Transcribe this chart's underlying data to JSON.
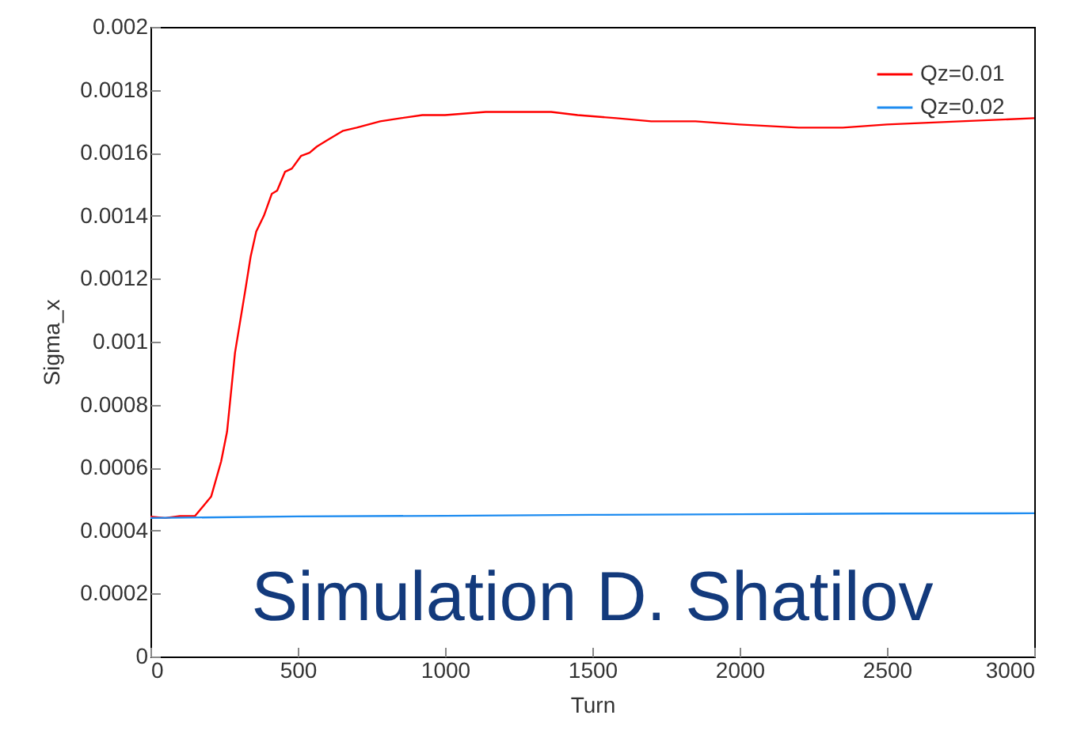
{
  "chart_data": {
    "type": "line",
    "xlabel": "Turn",
    "ylabel": "Sigma_x",
    "xlim": [
      0,
      3000
    ],
    "xticks": [
      0,
      500,
      1000,
      1500,
      2000,
      2500,
      3000
    ],
    "ylim": [
      0,
      0.002
    ],
    "yticks": [
      0,
      0.0002,
      0.0004,
      0.0006,
      0.0008,
      0.001,
      0.0012,
      0.0014,
      0.0016,
      0.0018,
      0.002
    ],
    "grid": false,
    "legend": "top right",
    "marker": "none",
    "line_style": "solid",
    "annotations": [
      "Simulation D. Shatilov"
    ],
    "series": [
      {
        "name": "Qz=0.01",
        "color": "#ff0000",
        "x": [
          0,
          50,
          100,
          152,
          206,
          240,
          260,
          287,
          323,
          340,
          359,
          385,
          412,
          430,
          457,
          480,
          511,
          540,
          565,
          600,
          654,
          700,
          780,
          850,
          923,
          1000,
          1138,
          1250,
          1360,
          1450,
          1581,
          1700,
          1850,
          2000,
          2200,
          2350,
          2500,
          2750,
          3000
        ],
        "values": [
          0.000444,
          0.00044,
          0.000446,
          0.000447,
          0.000508,
          0.00062,
          0.000714,
          0.000965,
          0.00117,
          0.00127,
          0.00135,
          0.0014,
          0.00147,
          0.00148,
          0.00154,
          0.00155,
          0.00159,
          0.0016,
          0.00162,
          0.00164,
          0.00167,
          0.00168,
          0.0017,
          0.00171,
          0.00172,
          0.00172,
          0.00173,
          0.00173,
          0.00173,
          0.00172,
          0.00171,
          0.0017,
          0.0017,
          0.00169,
          0.00168,
          0.00168,
          0.00169,
          0.0017,
          0.00171
        ]
      },
      {
        "name": "Qz=0.02",
        "color": "#1e8cf0",
        "x": [
          0,
          500,
          1000,
          1500,
          2000,
          2500,
          3000
        ],
        "values": [
          0.00044,
          0.000445,
          0.000447,
          0.00045,
          0.000452,
          0.000454,
          0.000455
        ]
      }
    ]
  }
}
